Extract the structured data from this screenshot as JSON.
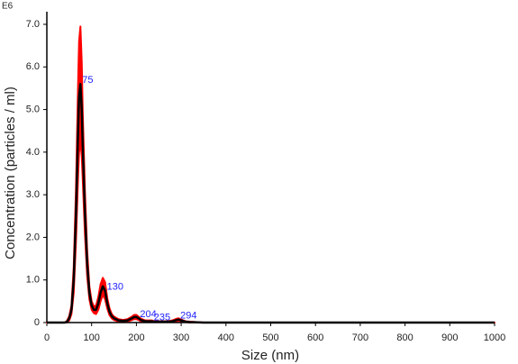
{
  "chart_data": {
    "type": "line",
    "unit_label": "E6",
    "x_label": "Size (nm)",
    "y_label": "Concentration (particles / ml)",
    "x": [
      0,
      40,
      45,
      50,
      55,
      60,
      65,
      70,
      72,
      75,
      78,
      80,
      85,
      90,
      95,
      100,
      105,
      110,
      115,
      120,
      125,
      130,
      135,
      140,
      145,
      150,
      160,
      170,
      180,
      190,
      195,
      200,
      205,
      210,
      220,
      230,
      235,
      240,
      250,
      260,
      270,
      280,
      290,
      294,
      300,
      310,
      320,
      350,
      400,
      500,
      600,
      700,
      800,
      900,
      1000
    ],
    "values": [
      0,
      0,
      0.02,
      0.1,
      0.3,
      1.0,
      2.5,
      4.6,
      5.3,
      5.6,
      5.0,
      4.2,
      2.6,
      1.4,
      0.7,
      0.4,
      0.3,
      0.3,
      0.45,
      0.7,
      0.85,
      0.75,
      0.45,
      0.25,
      0.15,
      0.1,
      0.05,
      0.04,
      0.05,
      0.1,
      0.13,
      0.13,
      0.1,
      0.06,
      0.03,
      0.03,
      0.03,
      0.02,
      0.02,
      0.02,
      0.02,
      0.03,
      0.06,
      0.07,
      0.05,
      0.02,
      0.01,
      0,
      0,
      0,
      0,
      0,
      0,
      0,
      0
    ],
    "errors": [
      0,
      0,
      0.02,
      0.05,
      0.1,
      0.3,
      0.6,
      1.1,
      1.3,
      1.35,
      1.1,
      0.8,
      0.5,
      0.3,
      0.15,
      0.1,
      0.08,
      0.1,
      0.15,
      0.2,
      0.2,
      0.2,
      0.12,
      0.08,
      0.05,
      0.04,
      0.03,
      0.02,
      0.03,
      0.04,
      0.05,
      0.05,
      0.04,
      0.03,
      0.02,
      0.02,
      0.02,
      0.01,
      0.01,
      0.01,
      0.01,
      0.02,
      0.03,
      0.03,
      0.02,
      0.01,
      0.01,
      0,
      0,
      0,
      0,
      0,
      0,
      0,
      0
    ],
    "color": "#000000",
    "error_color": "#ff0000",
    "peak_labels": [
      75,
      130,
      204,
      235,
      294
    ],
    "peak_label_color": "#2222ff",
    "xlim": [
      0,
      1000
    ],
    "xticks": [
      0,
      100,
      200,
      300,
      400,
      500,
      600,
      700,
      800,
      900,
      1000
    ],
    "ylim": [
      0,
      7
    ],
    "yticks": [
      0,
      {
        "value": 1,
        "label": "1.0"
      },
      {
        "value": 2,
        "label": "2.0"
      },
      {
        "value": 3,
        "label": "3.0"
      },
      {
        "value": 4,
        "label": "4.0"
      },
      {
        "value": 5,
        "label": "5.0"
      },
      {
        "value": 6,
        "label": "6.0"
      },
      {
        "value": 7,
        "label": "7.0"
      }
    ]
  }
}
